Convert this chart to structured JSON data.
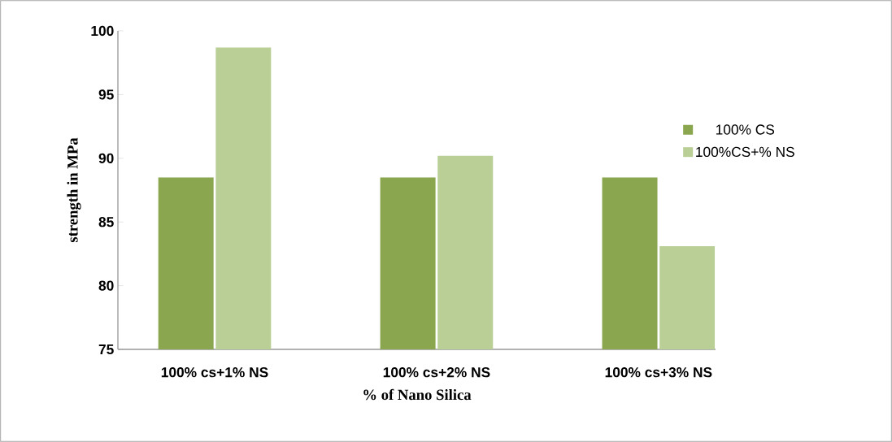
{
  "chart_data": {
    "type": "bar",
    "xlabel": "% of Nano Silica",
    "ylabel": "strength in MPa",
    "categories": [
      "100% cs+1% NS",
      "100% cs+2% NS",
      "100% cs+3% NS"
    ],
    "series": [
      {
        "name": "100% CS",
        "color": "#8aa64e",
        "values": [
          88.5,
          88.5,
          88.5
        ]
      },
      {
        "name": "100%CS+% NS",
        "color": "#b9cf96",
        "values": [
          98.7,
          90.2,
          83.1
        ]
      }
    ],
    "ylim": [
      75,
      100
    ],
    "yticks": [
      75,
      80,
      85,
      90,
      95,
      100
    ],
    "grid": false,
    "legend": "right"
  }
}
